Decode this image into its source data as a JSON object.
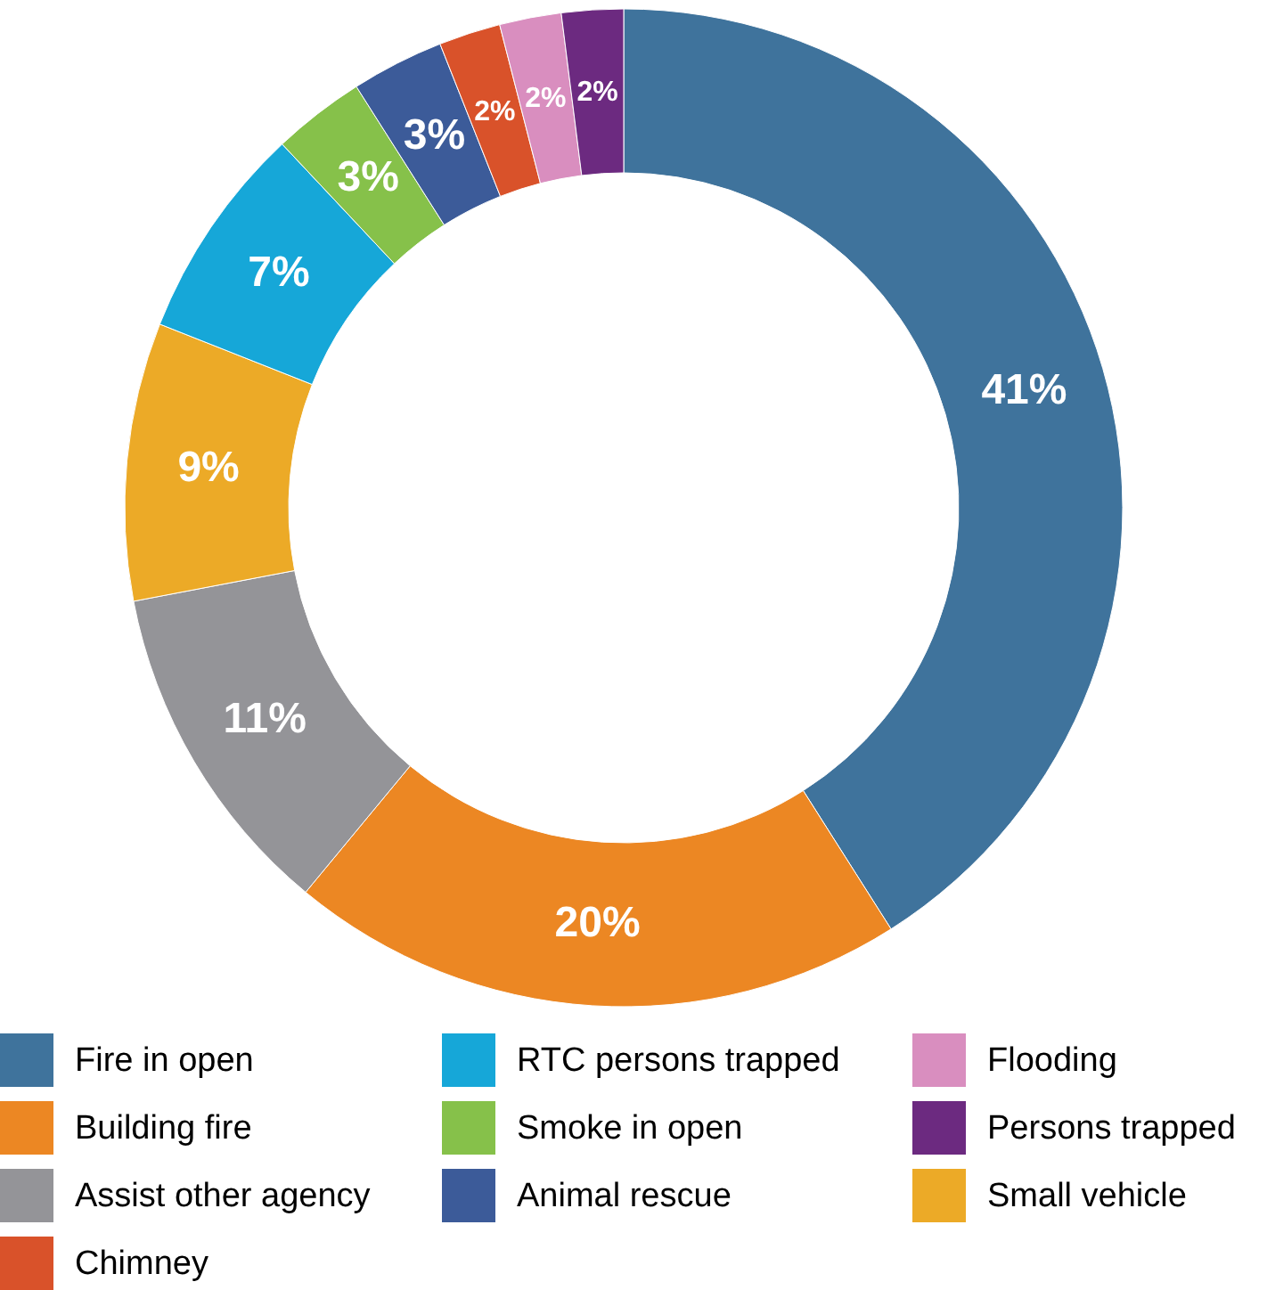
{
  "chart_data": {
    "type": "donut",
    "categories": [
      "Fire in open",
      "Building fire",
      "Assist other agency",
      "Small vehicle",
      "RTC persons trapped",
      "Smoke in open",
      "Animal rescue",
      "Chimney",
      "Flooding",
      "Persons trapped"
    ],
    "values": [
      41,
      20,
      11,
      9,
      7,
      3,
      3,
      2,
      2,
      2
    ],
    "colors": [
      "#3f739c",
      "#ec8723",
      "#949498",
      "#ecaa27",
      "#16a7d8",
      "#86c14a",
      "#3c5b99",
      "#d9522a",
      "#d98ebf",
      "#6c2a80"
    ],
    "value_labels": [
      "41%",
      "20%",
      "11%",
      "9%",
      "7%",
      "3%",
      "3%",
      "2%",
      "2%",
      "2%"
    ],
    "legend": "bottom"
  }
}
